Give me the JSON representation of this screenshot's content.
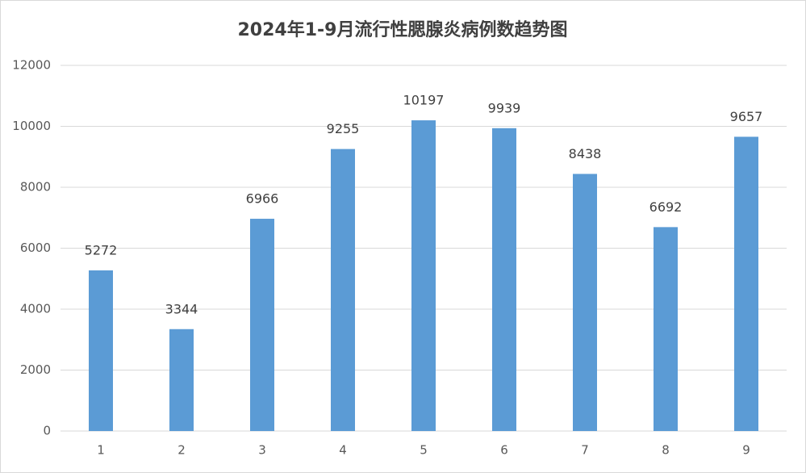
{
  "chart_data": {
    "type": "bar",
    "title": "2024年1-9月流行性腮腺炎病例数趋势图",
    "categories": [
      "1",
      "2",
      "3",
      "4",
      "5",
      "6",
      "7",
      "8",
      "9"
    ],
    "values": [
      5272,
      3344,
      6966,
      9255,
      10197,
      9939,
      8438,
      6692,
      9657
    ],
    "color": "#5b9bd5",
    "ylim": [
      0,
      12000
    ],
    "yticks": [
      0,
      2000,
      4000,
      6000,
      8000,
      10000,
      12000
    ],
    "grid": true
  }
}
